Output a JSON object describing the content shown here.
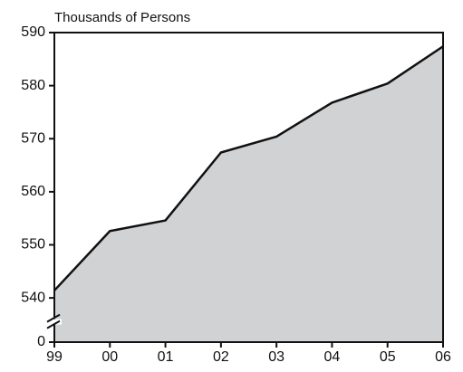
{
  "chart_data": {
    "type": "area",
    "y_label": "Thousands of Persons",
    "categories": [
      "99",
      "00",
      "01",
      "02",
      "03",
      "04",
      "05",
      "06"
    ],
    "values": [
      541.4,
      552.6,
      554.6,
      567.4,
      570.4,
      576.8,
      580.4,
      587.4
    ],
    "color": "#d1d2d4",
    "line_color": "#111111",
    "ylim": [
      0,
      590
    ],
    "axis_break": [
      0,
      530
    ],
    "yticks": [
      0,
      540,
      550,
      560,
      570,
      580,
      590
    ]
  }
}
